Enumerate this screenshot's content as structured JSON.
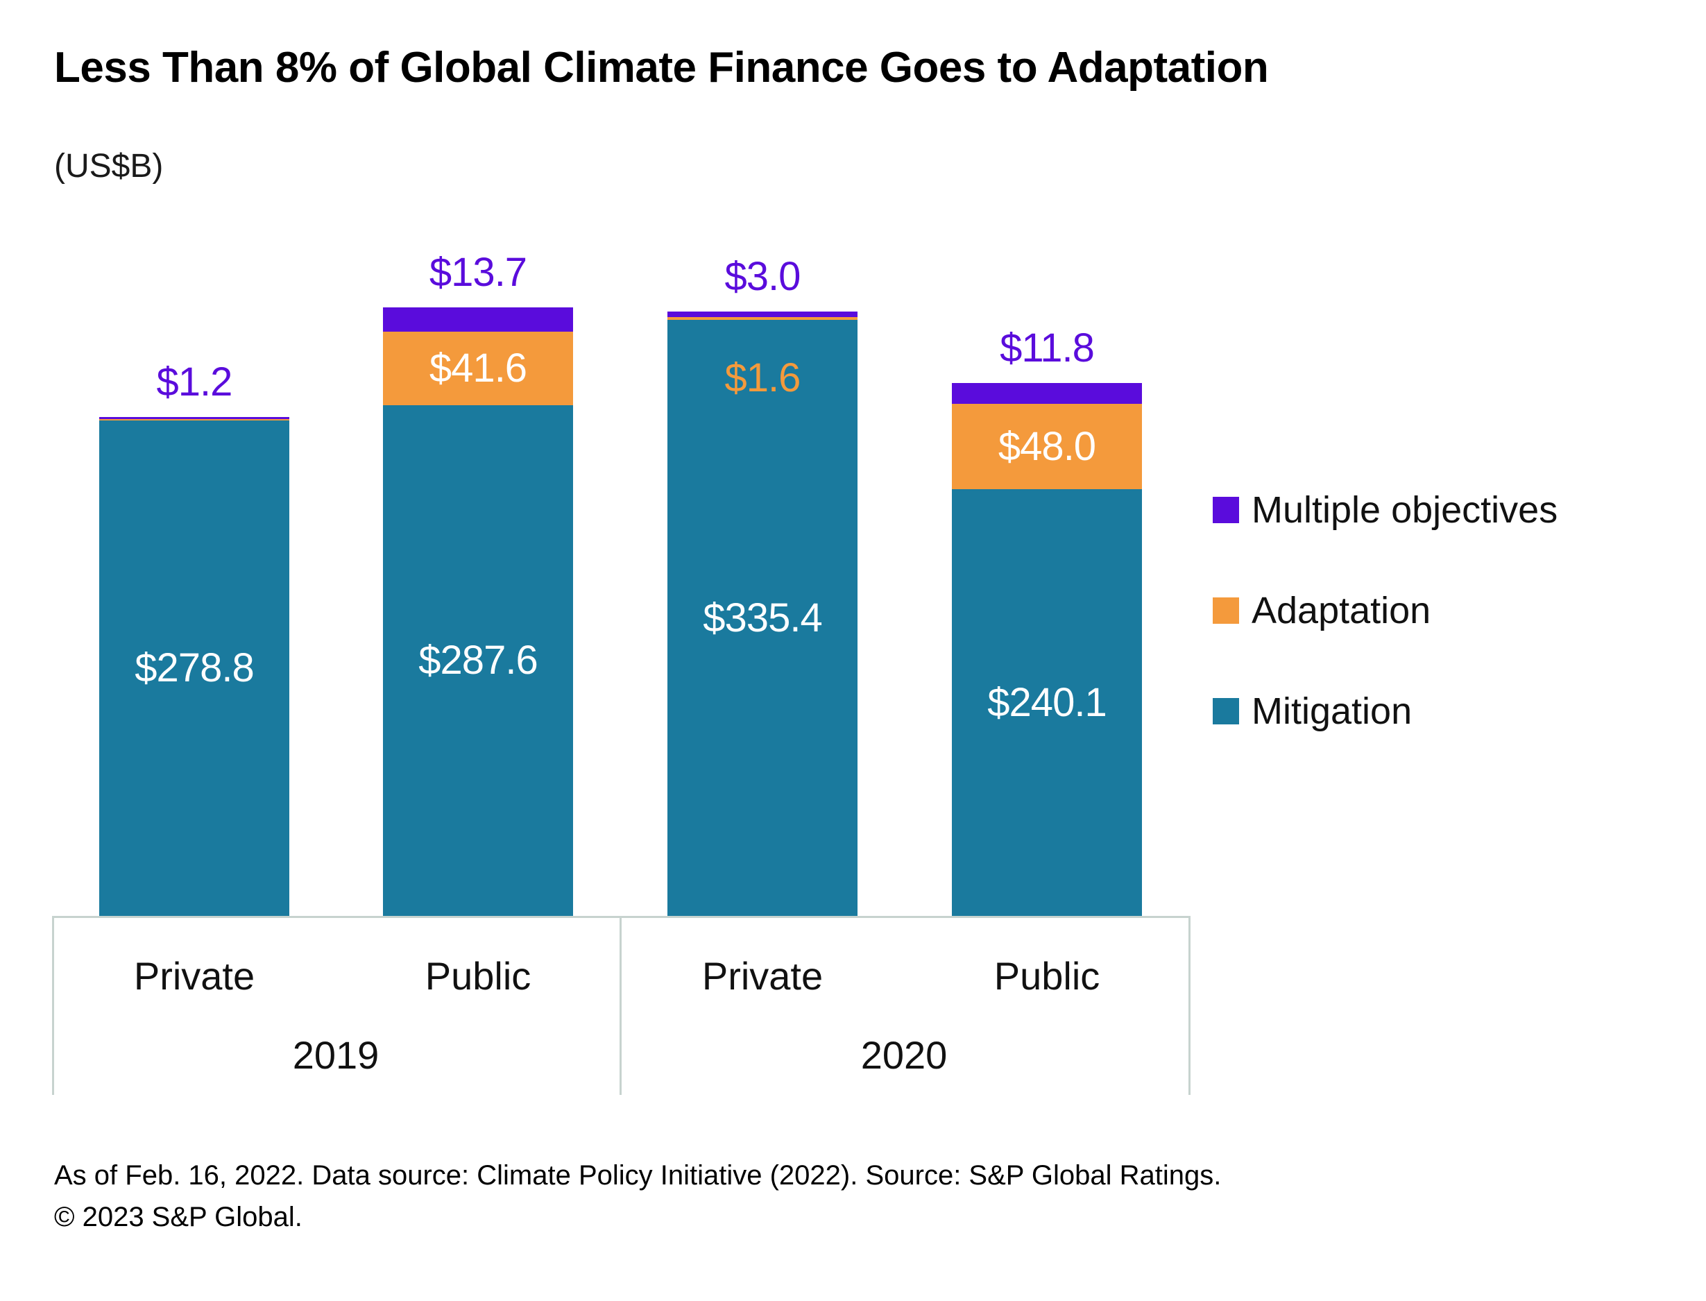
{
  "title": "Less Than 8% of Global Climate Finance Goes to Adaptation",
  "subtitle": "(US$B)",
  "axis": {
    "categories": [
      "Private",
      "Public",
      "Private",
      "Public"
    ],
    "years": [
      "2019",
      "2020"
    ]
  },
  "legend": {
    "items": [
      {
        "label": "Multiple objectives",
        "color": "#5a0cdc"
      },
      {
        "label": "Adaptation",
        "color": "#f49a3c"
      },
      {
        "label": "Mitigation",
        "color": "#1a7a9e"
      }
    ]
  },
  "footer": {
    "line1": "As of Feb. 16, 2022. Data source: Climate Policy Initiative (2022). Source: S&P Global Ratings.",
    "line2": "© 2023 S&P Global."
  },
  "chart_data": {
    "type": "bar",
    "stacked": true,
    "unit": "US$B",
    "title": "Less Than 8% of Global Climate Finance Goes to Adaptation",
    "ylabel": "(US$B)",
    "grid": false,
    "legend_position": "right",
    "groups": [
      {
        "year": "2019",
        "bars": [
          "Private",
          "Public"
        ]
      },
      {
        "year": "2020",
        "bars": [
          "Private",
          "Public"
        ]
      }
    ],
    "categories": [
      "Private 2019",
      "Public 2019",
      "Private 2020",
      "Public 2020"
    ],
    "series": [
      {
        "name": "Mitigation",
        "color": "#1a7a9e",
        "label_color": "#ffffff",
        "values": [
          278.8,
          287.6,
          335.4,
          240.1
        ],
        "labels": [
          "$278.8",
          "$287.6",
          "$335.4",
          "$240.1"
        ]
      },
      {
        "name": "Adaptation",
        "color": "#f49a3c",
        "label_color": "#ffffff",
        "values": [
          null,
          41.6,
          1.6,
          48.0
        ],
        "labels": [
          "",
          "$41.6",
          "$1.6",
          "$48.0"
        ]
      },
      {
        "name": "Multiple objectives",
        "color": "#5a0cdc",
        "label_color": "#5a0cdc",
        "values": [
          1.2,
          13.7,
          3.0,
          11.8
        ],
        "labels": [
          "$1.2",
          "$13.7",
          "$3.0",
          "$11.8"
        ]
      }
    ]
  }
}
